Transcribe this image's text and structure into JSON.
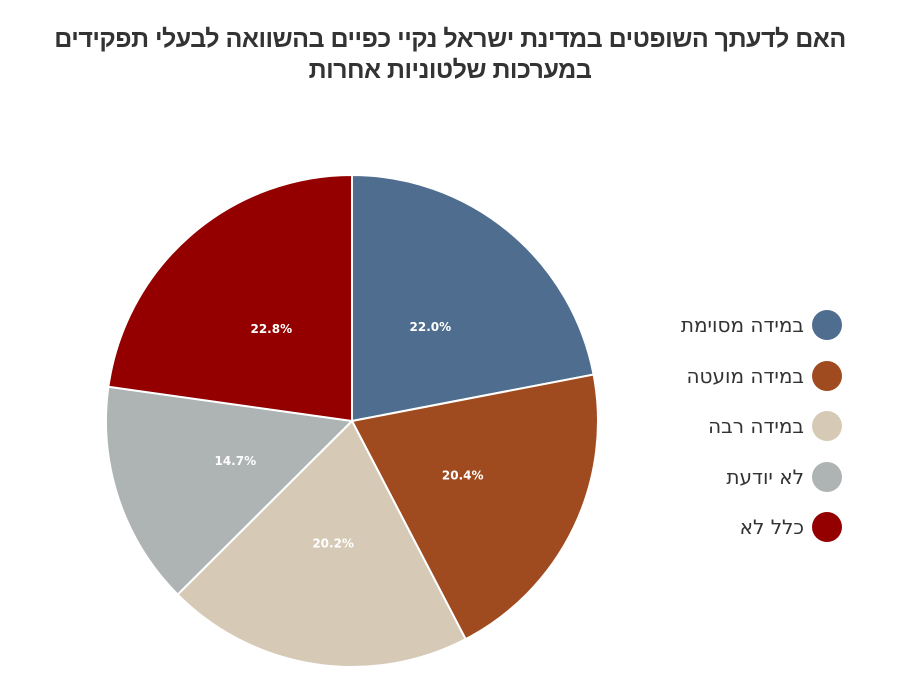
{
  "chart_data": {
    "type": "pie",
    "title": "האם לדעתך השופטים במדינת ישראל נקיי כפיים בהשוואה לבעלי תפקידים במערכות שלטוניות אחרות",
    "categories": [
      "במידה מסוימת",
      "במידה מועטה",
      "במידה רבה",
      "לא יודעת",
      "כלל לא"
    ],
    "values": [
      22.0,
      20.4,
      20.2,
      14.7,
      22.8
    ],
    "labels": [
      "22.0%",
      "20.4%",
      "20.2%",
      "14.7%",
      "22.8%"
    ],
    "colors": [
      "#4f6d8f",
      "#a04a20",
      "#d6cab6",
      "#aeb3b3",
      "#940000"
    ],
    "legend_placement": "right"
  }
}
